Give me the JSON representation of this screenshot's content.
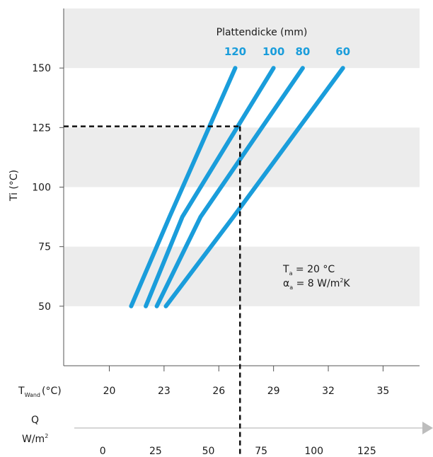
{
  "chart_data": {
    "type": "line",
    "legend_title": "Plattendicke (mm)",
    "ylabel": "Ti (°C)",
    "ylim": [
      25,
      175
    ],
    "yticks": [
      50,
      75,
      100,
      125,
      150
    ],
    "band_stripes": [
      [
        50,
        75
      ],
      [
        100,
        125
      ],
      [
        150,
        175
      ]
    ],
    "x_axis_tw": {
      "label_main": "T",
      "label_sub": "Wand",
      "label_unit": "(°C)",
      "min": 17.5,
      "max": 37.0,
      "ticks": [
        20,
        23,
        26,
        29,
        32,
        35
      ],
      "tick_labels": [
        "20",
        "23",
        "26",
        "29",
        "32",
        "35"
      ]
    },
    "x_axis_q": {
      "label_top": "Q",
      "label_bottom": "W/m",
      "label_sup": "2",
      "min": -18.5,
      "max": 150,
      "ticks": [
        0,
        25,
        50,
        75,
        100,
        125
      ],
      "tick_labels": [
        "0",
        "25",
        "50",
        "75",
        "100",
        "125"
      ]
    },
    "color": "#1a9ddb",
    "series": [
      {
        "name": "120",
        "points": [
          [
            21.2,
            50
          ],
          [
            23.3,
            87.5
          ],
          [
            26.9,
            150
          ]
        ]
      },
      {
        "name": "100",
        "points": [
          [
            22.0,
            50
          ],
          [
            24.0,
            87.5
          ],
          [
            29.0,
            150
          ]
        ]
      },
      {
        "name": "80",
        "points": [
          [
            22.6,
            50
          ],
          [
            25.0,
            87.5
          ],
          [
            30.6,
            150
          ]
        ]
      },
      {
        "name": "60",
        "points": [
          [
            23.1,
            50
          ],
          [
            26.8,
            87.5
          ],
          [
            32.8,
            150
          ]
        ]
      }
    ],
    "reference": {
      "Ti": 125.5,
      "Q": 65
    },
    "annotation": {
      "ta_main": "T",
      "ta_sub": "a",
      "ta_value": " = 20 °C",
      "alpha_main": "α",
      "alpha_sub": "a",
      "alpha_value": " = 8 W/m",
      "alpha_sup": "2",
      "alpha_tail": "K"
    }
  }
}
